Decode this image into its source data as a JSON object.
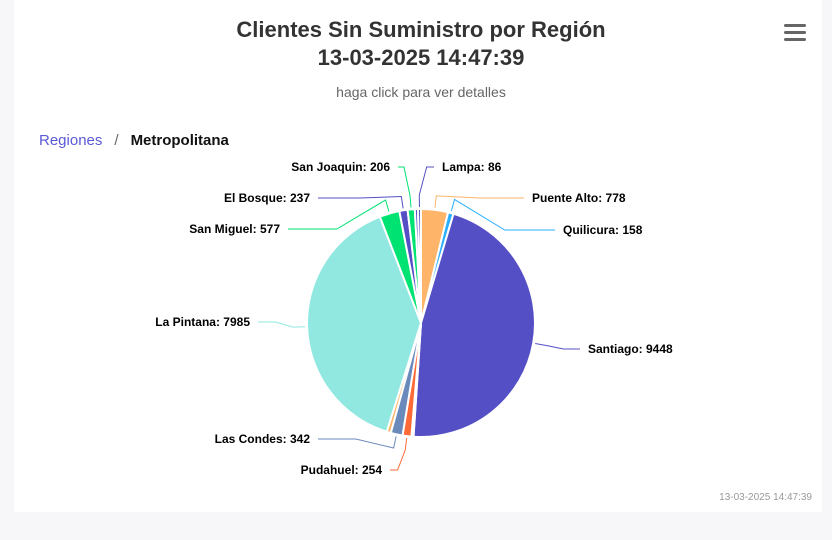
{
  "title_line1": "Clientes Sin Suministro por Región",
  "title_line2": "13-03-2025 14:47:39",
  "subtitle": "haga click para ver detalles",
  "menu_icon": "hamburger-menu-icon",
  "breadcrumb": {
    "parent": "Regiones",
    "separator": "/",
    "current": "Metropolitana"
  },
  "credits_timestamp": "13-03-2025 14:47:39",
  "chart_data": {
    "type": "pie",
    "title": "Clientes Sin Suministro por Región",
    "subtitle": "haga click para ver detalles",
    "slices": [
      {
        "name": "Puente Alto",
        "value": 778,
        "color": "#feb56a"
      },
      {
        "name": "Quilicura",
        "value": 158,
        "color": "#2caffe"
      },
      {
        "name": "Santiago",
        "value": 9448,
        "color": "#544fc5"
      },
      {
        "name": "",
        "value": 60,
        "color": "#00e272"
      },
      {
        "name": "Pudahuel",
        "value": 254,
        "color": "#fe6a35"
      },
      {
        "name": "Las Condes",
        "value": 342,
        "color": "#6b8abc"
      },
      {
        "name": "",
        "value": 120,
        "color": "#feb56a"
      },
      {
        "name": "La Pintana",
        "value": 7985,
        "color": "#91e8e1"
      },
      {
        "name": "San Miguel",
        "value": 577,
        "color": "#00e272"
      },
      {
        "name": "El Bosque",
        "value": 237,
        "color": "#544fc5"
      },
      {
        "name": "San Joaquin",
        "value": 206,
        "color": "#00e272"
      },
      {
        "name": "",
        "value": 90,
        "color": "#544fc5"
      },
      {
        "name": "Lampa",
        "value": 86,
        "color": "#544fc5"
      }
    ]
  }
}
